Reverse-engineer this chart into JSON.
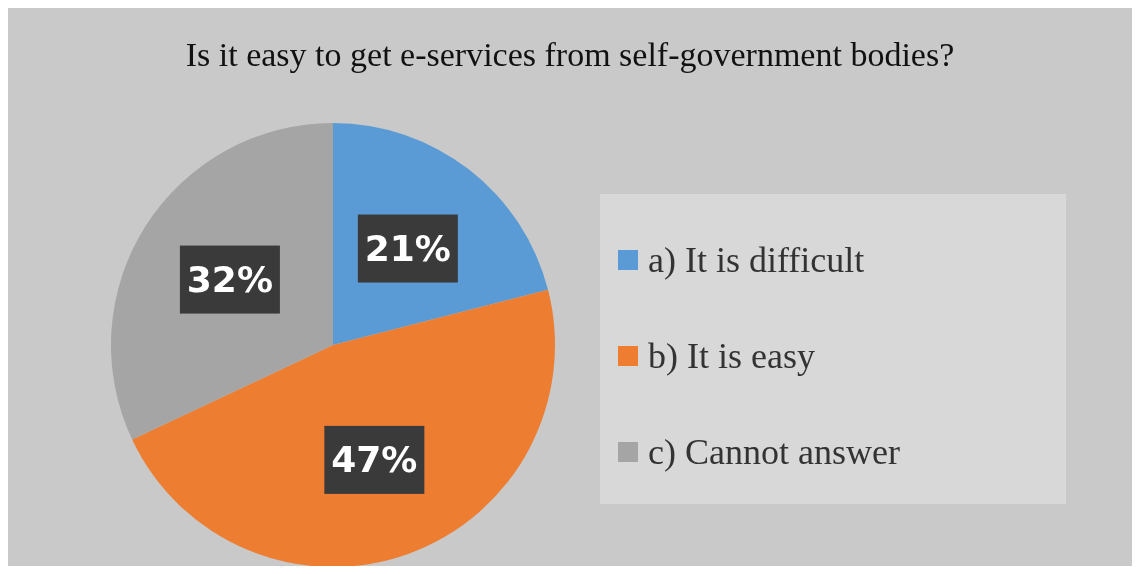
{
  "chart_data": {
    "type": "pie",
    "title": "Is it easy to get e-services from self-government bodies?",
    "categories": [
      "a) It is difficult",
      "b) It is easy",
      "c) Cannot answer"
    ],
    "values": [
      21,
      47,
      32
    ],
    "colors": [
      "#5b9bd5",
      "#ed7d31",
      "#a5a5a5"
    ],
    "value_labels": [
      "21%",
      "47%",
      "32%"
    ],
    "legend": "right"
  }
}
